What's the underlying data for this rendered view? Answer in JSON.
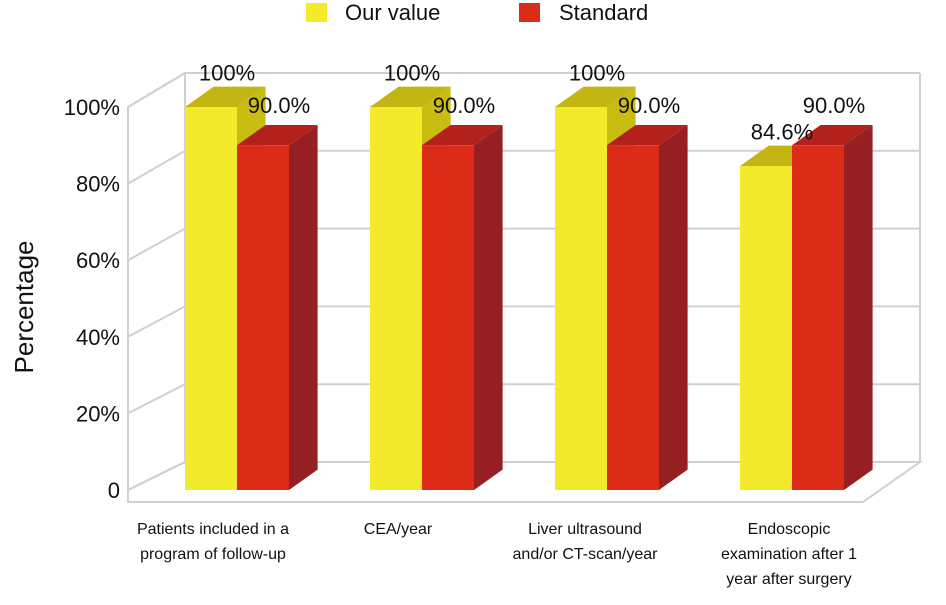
{
  "chart_data": {
    "type": "bar",
    "categories": [
      [
        "Patients included in a",
        "program of follow-up"
      ],
      [
        "CEA/year"
      ],
      [
        "Liver ultrasound",
        "and/or CT-scan/year"
      ],
      [
        "Endoscopic",
        "examination after 1",
        "year after surgery"
      ]
    ],
    "series": [
      {
        "name": "Our value",
        "values": [
          100,
          100,
          100,
          84.6
        ],
        "labels": [
          "100%",
          "100%",
          "100%",
          "84.6%"
        ],
        "color": "#f2ea2a",
        "side_color": "#c8bd10",
        "top_color": "#c3b612"
      },
      {
        "name": "Standard",
        "values": [
          90,
          90,
          90,
          90
        ],
        "labels": [
          "90.0%",
          "90.0%",
          "90.0%",
          "90.0%"
        ],
        "color": "#dc2b17",
        "side_color": "#951f22",
        "top_color": "#b2211c"
      }
    ],
    "ylabel": "Percentage",
    "ylim": [
      0,
      100
    ],
    "yticks": [
      0,
      20,
      40,
      60,
      80,
      100
    ],
    "ytick_labels": [
      "0",
      "20%",
      "40%",
      "60%",
      "80%",
      "100%"
    ],
    "grid": true,
    "legend_position": "top-center"
  }
}
